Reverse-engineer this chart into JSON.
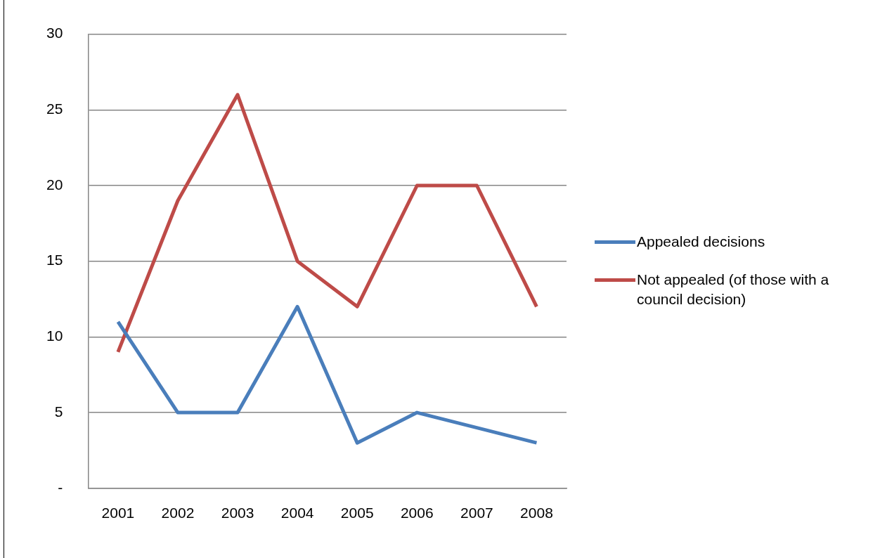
{
  "chart_data": {
    "type": "line",
    "categories": [
      "2001",
      "2002",
      "2003",
      "2004",
      "2005",
      "2006",
      "2007",
      "2008"
    ],
    "series": [
      {
        "name": "Appealed decisions",
        "color": "#4a7ebb",
        "values": [
          11,
          5,
          5,
          12,
          3,
          5,
          4,
          3
        ]
      },
      {
        "name": "Not appealed (of those with a council decision)",
        "color": "#be4b48",
        "values": [
          9,
          19,
          26,
          15,
          12,
          20,
          20,
          12
        ]
      }
    ],
    "ylim": [
      0,
      30
    ],
    "yticks": [
      {
        "value": 0,
        "label": "-"
      },
      5,
      10,
      15,
      20,
      25,
      30
    ],
    "grid": "y",
    "legend": "right",
    "marker": "none",
    "line_style": "solid"
  }
}
